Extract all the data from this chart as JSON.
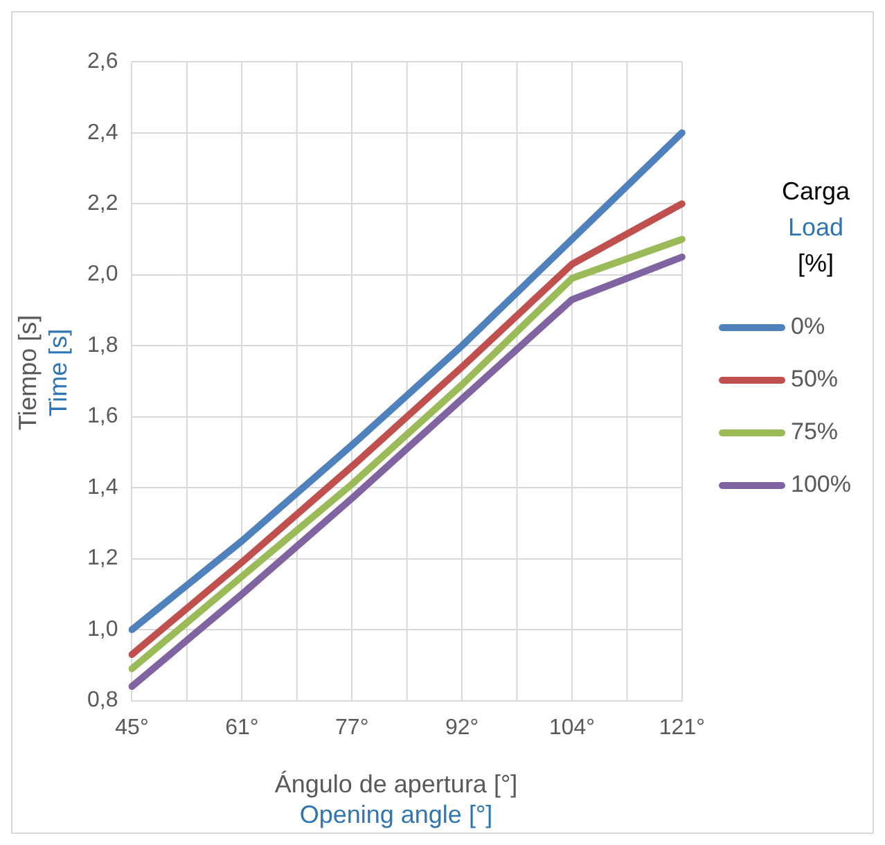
{
  "chart_data": {
    "type": "line",
    "xlabel": "Ángulo de apertura [°]\nOpening angle [°]",
    "ylabel": "Tiempo [s]\nTime [s]",
    "legend_title": "Carga\nLoad\n[%]",
    "categories": [
      "45°",
      "61°",
      "77°",
      "92°",
      "104°",
      "121°"
    ],
    "series": [
      {
        "name": "0%",
        "color": "#4f81bd",
        "values": [
          1.0,
          1.25,
          1.52,
          1.8,
          2.1,
          2.4
        ]
      },
      {
        "name": "50%",
        "color": "#c0504d",
        "values": [
          0.93,
          1.19,
          1.46,
          1.74,
          2.03,
          2.2
        ]
      },
      {
        "name": "75%",
        "color": "#9bbb59",
        "values": [
          0.89,
          1.15,
          1.41,
          1.69,
          1.99,
          2.1
        ]
      },
      {
        "name": "100%",
        "color": "#8064a2",
        "values": [
          0.84,
          1.1,
          1.37,
          1.65,
          1.93,
          2.05
        ]
      }
    ],
    "ylim": [
      0.8,
      2.6
    ],
    "yticks": [
      {
        "value": 0.8,
        "label": "0,8"
      },
      {
        "value": 1.0,
        "label": "1,0"
      },
      {
        "value": 1.2,
        "label": "1,2"
      },
      {
        "value": 1.4,
        "label": "1,4"
      },
      {
        "value": 1.6,
        "label": "1,6"
      },
      {
        "value": 1.8,
        "label": "1,8"
      },
      {
        "value": 2.0,
        "label": "2,0"
      },
      {
        "value": 2.2,
        "label": "2,2"
      },
      {
        "value": 2.4,
        "label": "2,4"
      },
      {
        "value": 2.6,
        "label": "2,6"
      }
    ],
    "grid": true,
    "legend": "right",
    "marker": "none",
    "line_style": "solid"
  }
}
